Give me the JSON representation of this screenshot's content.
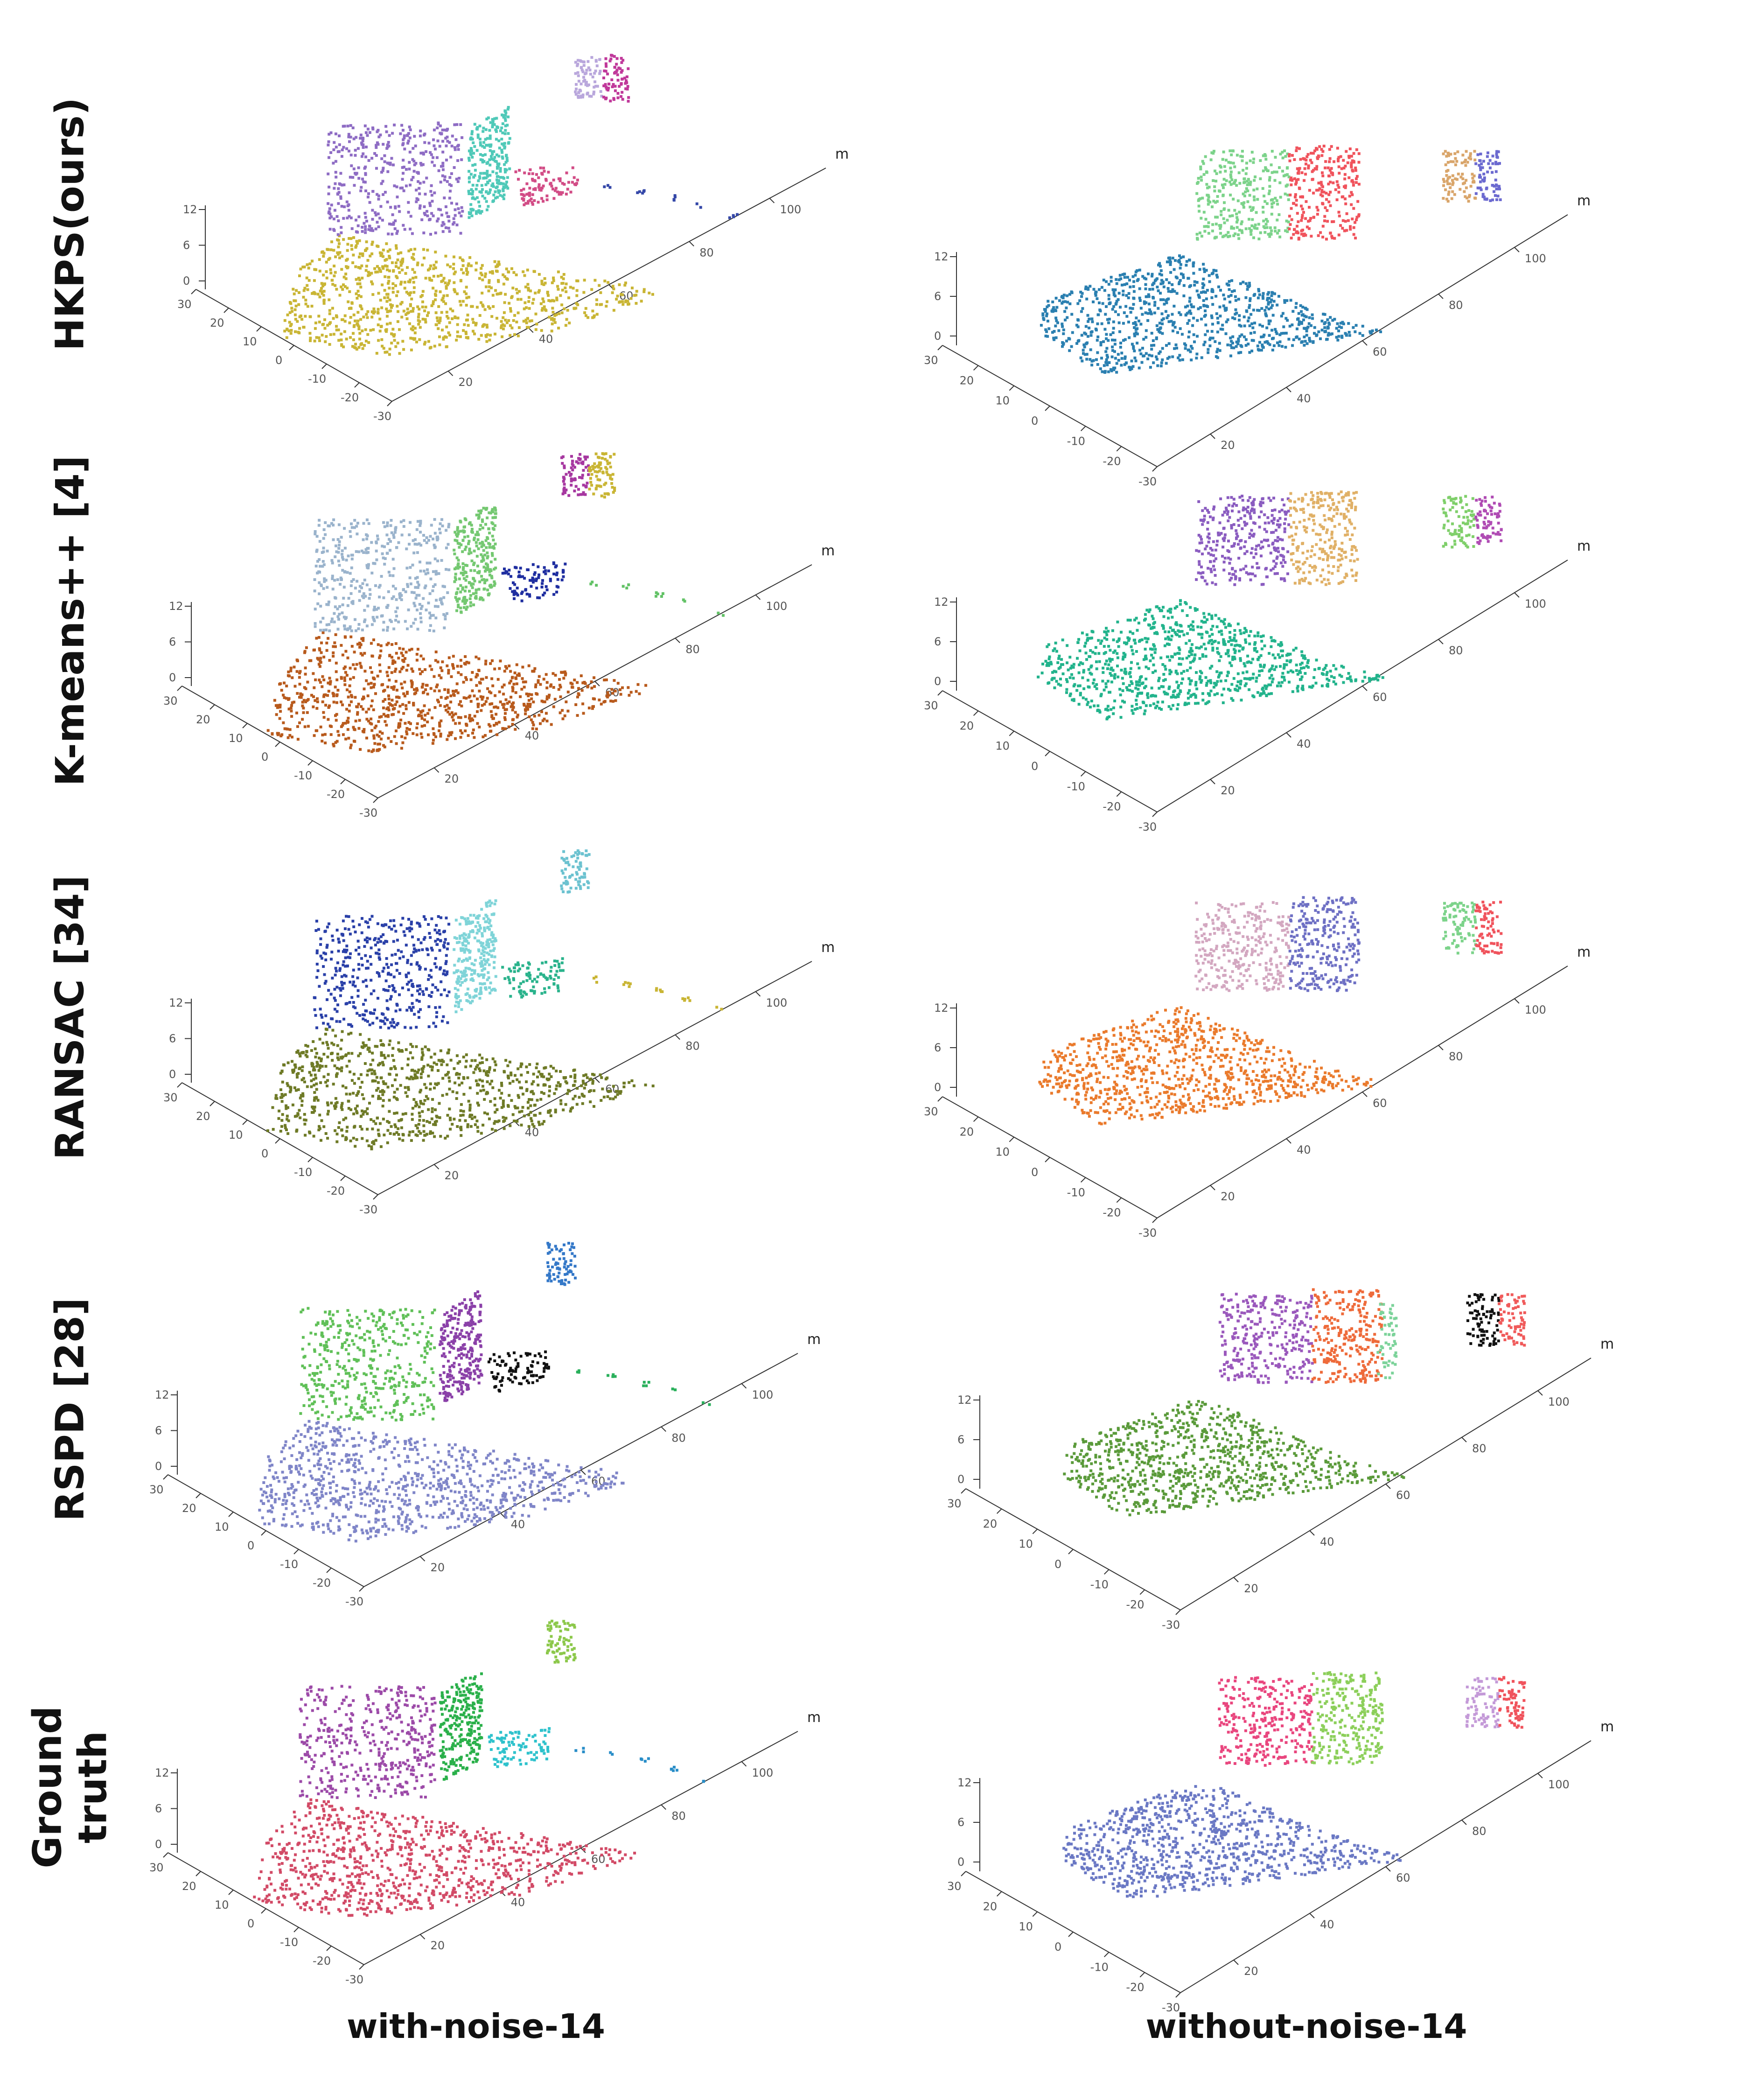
{
  "chart_data": {
    "type": "scatter",
    "title": "",
    "columns": [
      "with-noise-14",
      "without-noise-14"
    ],
    "rows": [
      {
        "label": "HKPS(ours)",
        "clusters": [
          {
            "with_noise": [
              "#c9b534",
              "#8e6cc4",
              "#4fc9b8",
              "#d24c86",
              "#3447a8",
              "#b9a7dc",
              "#c0389a"
            ],
            "without_noise": [
              "#2a7fb0",
              "#7cd38a",
              "#f0535c",
              "#d9a56a",
              "#6c6ad0"
            ]
          }
        ]
      },
      {
        "label": "K-means++ [4]",
        "clusters": [
          {
            "with_noise": [
              "#b85a1c",
              "#9ab3cc",
              "#74c871",
              "#1f2ea0",
              "#62c266",
              "#a637a0",
              "#c9b534",
              "#7ac9c9"
            ],
            "without_noise": [
              "#22b38c",
              "#8a5cc0",
              "#e0b066",
              "#7fcf6a",
              "#b04cb4"
            ]
          }
        ]
      },
      {
        "label": "RANSAC [34]",
        "clusters": [
          {
            "with_noise": [
              "#6e7a26",
              "#2a40a8",
              "#7fd4d8",
              "#2ab38c",
              "#c9b534",
              "#6cc2d0"
            ],
            "without_noise": [
              "#ea7a2c",
              "#d3a7c0",
              "#6e70c4",
              "#7cd38a",
              "#f0535c"
            ]
          }
        ]
      },
      {
        "label": "RSPD [28]",
        "clusters": [
          {
            "with_noise": [
              "#7f85c8",
              "#60c058",
              "#8a40a8",
              "#111111",
              "#2ab05c",
              "#3478c8"
            ],
            "without_noise": [
              "#5a9a3a",
              "#9a58bc",
              "#ee6a3a",
              "#111111",
              "#f05a5a",
              "#7cd39a"
            ]
          }
        ]
      },
      {
        "label": "Ground truth",
        "clusters": [
          {
            "with_noise": [
              "#d24a66",
              "#9c4aa8",
              "#2ab04a",
              "#2ec2cc",
              "#2a8ec8",
              "#8cc84a"
            ],
            "without_noise": [
              "#6a78c4",
              "#e9467e",
              "#8ccf5a",
              "#c49ad8",
              "#f0535c"
            ]
          }
        ]
      }
    ],
    "axes": {
      "x_unit": "m",
      "x_ticks": [
        "20",
        "40",
        "60",
        "80",
        "100"
      ],
      "y_ticks": [
        "30",
        "20",
        "10",
        "0",
        "-10",
        "-20",
        "-30"
      ],
      "z_ticks": [
        "0",
        "6",
        "12"
      ]
    }
  },
  "row_labels": [
    "HKPS(ours)",
    "K-means++ [4]",
    "RANSAC [34]",
    "RSPD [28]",
    "Ground\ntruth"
  ],
  "col_labels": [
    "with-noise-14",
    "without-noise-14"
  ],
  "axis_unit": "m",
  "colors": {
    "hkps_wn": [
      "#c9b534",
      "#8e6cc4",
      "#4fc9b8",
      "#d24c86",
      "#3447a8",
      "#b9a7dc",
      "#c0389a"
    ],
    "hkps_won": [
      "#2a7fb0",
      "#7cd38a",
      "#f0535c",
      "#d9a56a",
      "#6c6ad0"
    ],
    "km_wn": [
      "#b85a1c",
      "#9ab3cc",
      "#74c871",
      "#1f2ea0",
      "#62c266",
      "#a637a0",
      "#c9b534",
      "#7ac9c9"
    ],
    "km_won": [
      "#22b38c",
      "#8a5cc0",
      "#e0b066",
      "#7fcf6a",
      "#b04cb4"
    ],
    "ransac_wn": [
      "#6e7a26",
      "#2a40a8",
      "#7fd4d8",
      "#2ab38c",
      "#c9b534",
      "#6cc2d0"
    ],
    "ransac_won": [
      "#ea7a2c",
      "#d3a7c0",
      "#6e70c4",
      "#7cd38a",
      "#f0535c"
    ],
    "rspd_wn": [
      "#7f85c8",
      "#60c058",
      "#8a40a8",
      "#111111",
      "#2ab05c",
      "#3478c8"
    ],
    "rspd_won": [
      "#5a9a3a",
      "#9a58bc",
      "#ee6a3a",
      "#111111",
      "#f05a5a",
      "#7cd39a"
    ],
    "gt_wn": [
      "#d24a66",
      "#9c4aa8",
      "#2ab04a",
      "#2ec2cc",
      "#2a8ec8",
      "#8cc84a"
    ],
    "gt_won": [
      "#6a78c4",
      "#e9467e",
      "#8ccf5a",
      "#c49ad8",
      "#f0535c"
    ]
  }
}
